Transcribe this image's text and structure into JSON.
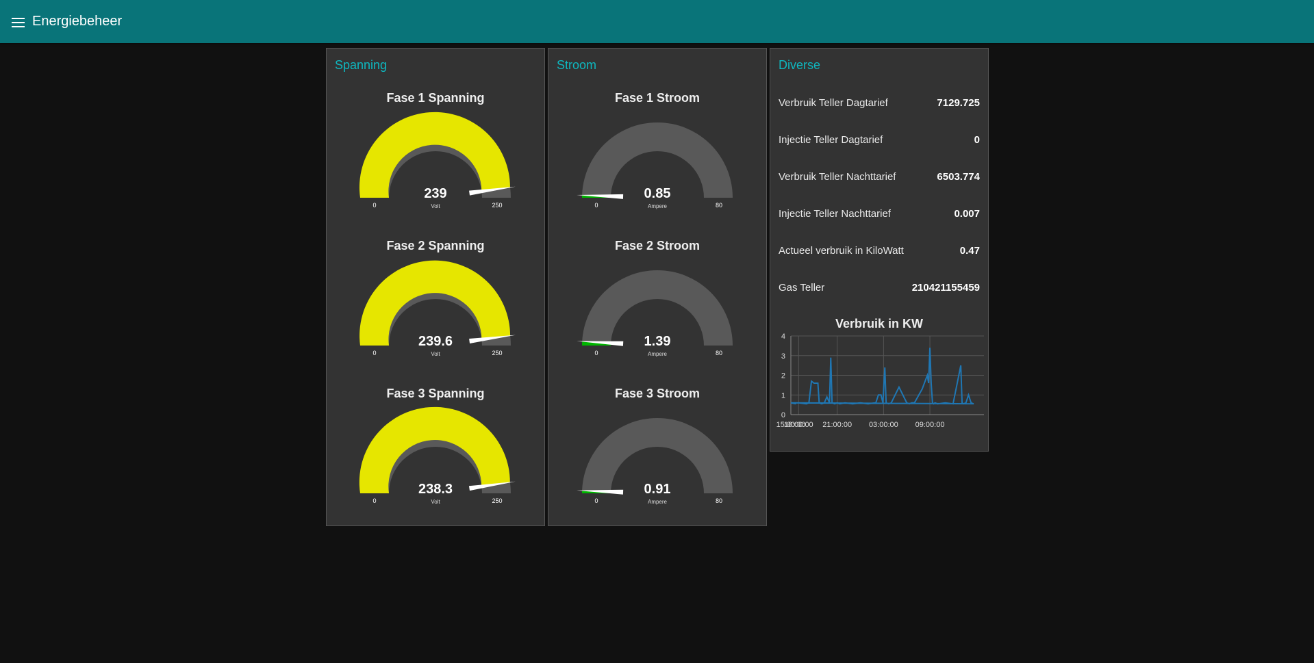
{
  "header": {
    "title": "Energiebeheer",
    "menu_icon": "hamburger-menu-icon"
  },
  "colors": {
    "header": "#097479",
    "accent": "#0eb8c0",
    "voltage_fill": "#e6e600",
    "current_fill": "#00b500",
    "track": "#595959"
  },
  "spanning": {
    "title": "Spanning",
    "gauges": [
      {
        "title": "Fase 1 Spanning",
        "value": "239",
        "numeric": 239,
        "min": "0",
        "max": "250",
        "unit": "Volt"
      },
      {
        "title": "Fase 2 Spanning",
        "value": "239.6",
        "numeric": 239.6,
        "min": "0",
        "max": "250",
        "unit": "Volt"
      },
      {
        "title": "Fase 3 Spanning",
        "value": "238.3",
        "numeric": 238.3,
        "min": "0",
        "max": "250",
        "unit": "Volt"
      }
    ]
  },
  "stroom": {
    "title": "Stroom",
    "gauges": [
      {
        "title": "Fase 1 Stroom",
        "value": "0.85",
        "numeric": 0.85,
        "min": "0",
        "max": "80",
        "unit": "Ampere"
      },
      {
        "title": "Fase 2 Stroom",
        "value": "1.39",
        "numeric": 1.39,
        "min": "0",
        "max": "80",
        "unit": "Ampere"
      },
      {
        "title": "Fase 3 Stroom",
        "value": "0.91",
        "numeric": 0.91,
        "min": "0",
        "max": "80",
        "unit": "Ampere"
      }
    ]
  },
  "diverse": {
    "title": "Diverse",
    "rows": [
      {
        "label": "Verbruik Teller Dagtarief",
        "value": "7129.725"
      },
      {
        "label": "Injectie Teller Dagtarief",
        "value": "0"
      },
      {
        "label": "Verbruik Teller Nachttarief",
        "value": "6503.774"
      },
      {
        "label": "Injectie Teller Nachttarief",
        "value": "0.007"
      },
      {
        "label": "Actueel verbruik in KiloWatt",
        "value": "0.47"
      },
      {
        "label": "Gas Teller",
        "value": "210421155459"
      }
    ]
  },
  "chart_data": {
    "type": "line",
    "title": "Verbruik in KW",
    "xlabel": "",
    "ylabel": "",
    "ylim": [
      0,
      4
    ],
    "yticks": [
      "0",
      "1",
      "2",
      "3",
      "4"
    ],
    "xticks": [
      "15:00:00",
      "21:00:00",
      "03:00:00",
      "09:00:00",
      "16:00:00"
    ],
    "grid": true,
    "color": "#1f77b4",
    "series": [
      {
        "x": [
          "16:00",
          "17:00",
          "17:20",
          "17:40",
          "18:00",
          "18:30",
          "18:40",
          "19:00",
          "19:20",
          "19:40",
          "20:00",
          "20:10",
          "20:20",
          "20:40",
          "21:00",
          "21:20",
          "22:00",
          "23:00",
          "00:00",
          "01:00",
          "02:00",
          "02:20",
          "02:40",
          "02:55",
          "03:10",
          "03:20",
          "03:40",
          "04:00",
          "05:00",
          "06:00",
          "06:20",
          "06:40",
          "07:00",
          "08:00",
          "08:40",
          "08:50",
          "09:00",
          "09:10",
          "09:20",
          "09:30",
          "09:40",
          "10:00",
          "11:00",
          "12:00",
          "13:00",
          "13:10",
          "13:20",
          "13:40",
          "14:00",
          "14:20",
          "14:40",
          "15:00",
          "15:40"
        ],
        "y": [
          0.6,
          0.55,
          0.6,
          1.7,
          1.6,
          1.6,
          0.6,
          0.55,
          0.6,
          0.9,
          0.6,
          2.9,
          0.6,
          0.55,
          0.6,
          0.55,
          0.6,
          0.55,
          0.6,
          0.55,
          0.6,
          1.0,
          1.0,
          0.6,
          2.4,
          0.6,
          0.55,
          0.6,
          1.4,
          0.6,
          0.55,
          0.6,
          0.6,
          1.3,
          2.0,
          1.6,
          3.4,
          1.6,
          0.6,
          0.55,
          0.6,
          0.55,
          0.6,
          0.55,
          2.5,
          0.6,
          0.55,
          0.6,
          1.0,
          0.6,
          0.55,
          0.6,
          0.55
        ]
      }
    ]
  }
}
